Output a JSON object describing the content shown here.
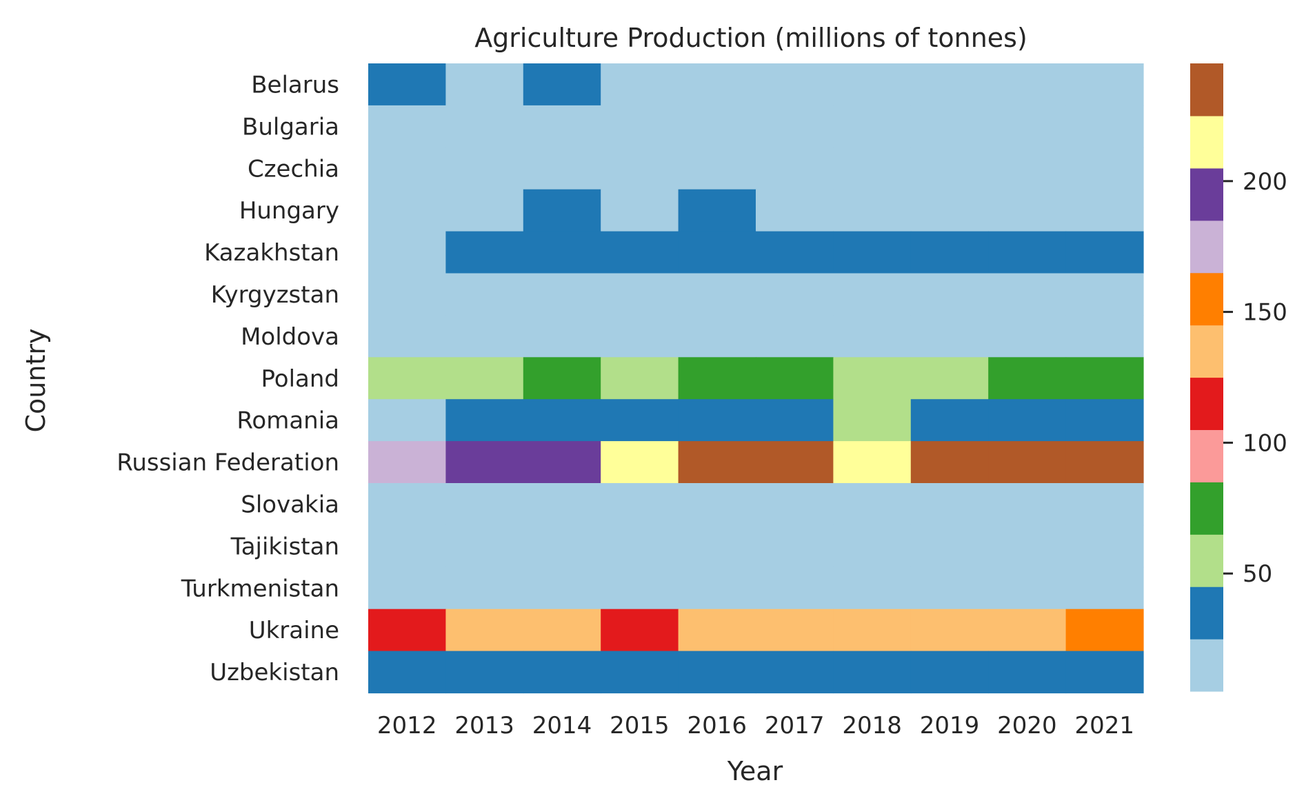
{
  "chart_data": {
    "type": "heatmap",
    "title": "Agriculture Production (millions of tonnes)",
    "xlabel": "Year",
    "ylabel": "Country",
    "x": [
      "2012",
      "2013",
      "2014",
      "2015",
      "2016",
      "2017",
      "2018",
      "2019",
      "2020",
      "2021"
    ],
    "y": [
      "Belarus",
      "Bulgaria",
      "Czechia",
      "Hungary",
      "Kazakhstan",
      "Kyrgyzstan",
      "Moldova",
      "Poland",
      "Romania",
      "Russian Federation",
      "Slovakia",
      "Tajikistan",
      "Turkmenistan",
      "Ukraine",
      "Uzbekistan"
    ],
    "values": [
      [
        30,
        20,
        30,
        20,
        20,
        20,
        20,
        20,
        20,
        20
      ],
      [
        10,
        10,
        10,
        10,
        10,
        10,
        10,
        10,
        10,
        10
      ],
      [
        10,
        10,
        10,
        10,
        10,
        10,
        10,
        10,
        10,
        10
      ],
      [
        20,
        20,
        30,
        20,
        30,
        20,
        20,
        20,
        20,
        20
      ],
      [
        20,
        30,
        30,
        30,
        30,
        30,
        30,
        30,
        30,
        30
      ],
      [
        5,
        5,
        5,
        5,
        5,
        5,
        5,
        5,
        5,
        5
      ],
      [
        5,
        5,
        5,
        5,
        5,
        5,
        5,
        5,
        5,
        5
      ],
      [
        55,
        55,
        75,
        55,
        75,
        75,
        55,
        55,
        75,
        75
      ],
      [
        20,
        35,
        35,
        35,
        35,
        35,
        55,
        35,
        35,
        35
      ],
      [
        180,
        195,
        195,
        215,
        235,
        235,
        215,
        235,
        235,
        235
      ],
      [
        10,
        10,
        10,
        10,
        10,
        10,
        10,
        10,
        10,
        10
      ],
      [
        5,
        5,
        5,
        5,
        5,
        5,
        5,
        5,
        5,
        5
      ],
      [
        5,
        5,
        5,
        5,
        5,
        5,
        5,
        5,
        5,
        5
      ],
      [
        115,
        135,
        135,
        115,
        135,
        135,
        135,
        135,
        135,
        155
      ],
      [
        30,
        30,
        30,
        30,
        30,
        30,
        30,
        30,
        30,
        30
      ]
    ],
    "colorbar": {
      "range": [
        5,
        245
      ],
      "ticks": [
        50,
        100,
        150,
        200
      ],
      "colors": [
        "#a6cee3",
        "#1f78b4",
        "#b2df8a",
        "#33a02c",
        "#fb9a99",
        "#e31a1c",
        "#fdbf6f",
        "#ff7f00",
        "#cab2d6",
        "#6a3d9a",
        "#ffff99",
        "#b15928"
      ]
    },
    "grid": false,
    "legend": "colorbar-right"
  }
}
